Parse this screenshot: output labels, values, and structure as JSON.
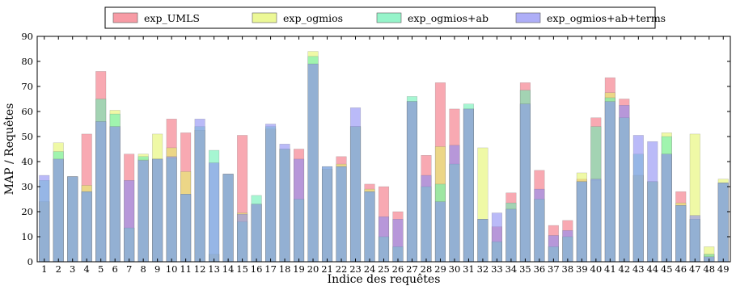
{
  "chart_data": {
    "type": "bar",
    "xlabel": "Indice des requêtes",
    "ylabel": "MAP / Requêtes",
    "ylim": [
      0,
      90
    ],
    "yticks": [
      0,
      10,
      20,
      30,
      40,
      50,
      60,
      70,
      80,
      90
    ],
    "categories": [
      "1",
      "2",
      "3",
      "4",
      "5",
      "6",
      "7",
      "8",
      "9",
      "10",
      "11",
      "12",
      "13",
      "14",
      "15",
      "16",
      "17",
      "18",
      "19",
      "20",
      "21",
      "22",
      "23",
      "24",
      "25",
      "26",
      "27",
      "28",
      "29",
      "30",
      "31",
      "32",
      "33",
      "34",
      "35",
      "36",
      "37",
      "38",
      "39",
      "40",
      "41",
      "42",
      "43",
      "44",
      "45",
      "46",
      "47",
      "48",
      "49"
    ],
    "legend_position": "top",
    "overlay": true,
    "series": [
      {
        "name": "exp_UMLS",
        "color": "#f4707f",
        "values": [
          24,
          41,
          34,
          51,
          76,
          54,
          43,
          41,
          41,
          57,
          51.5,
          52.5,
          3,
          35,
          50.5,
          23,
          53,
          45,
          45,
          79,
          37,
          42,
          54,
          31,
          30,
          20,
          64,
          42.5,
          71.5,
          61,
          61,
          17,
          14,
          27.5,
          71.5,
          36.5,
          14.5,
          16.5,
          33,
          57.5,
          73.5,
          65,
          34.5,
          32,
          43,
          28,
          17,
          3,
          31.5
        ]
      },
      {
        "name": "exp_ogmios",
        "color": "#e4f56a",
        "values": [
          24,
          47.5,
          34,
          30.5,
          56,
          60.5,
          13.5,
          43,
          51,
          45.5,
          36,
          52.5,
          3,
          35,
          19.5,
          23,
          53,
          45,
          25,
          84,
          37,
          39,
          54,
          29,
          10,
          6,
          64,
          30,
          46,
          39,
          61,
          45.5,
          8,
          21,
          63,
          25,
          6,
          10,
          35.5,
          32.5,
          67.5,
          57.5,
          34.5,
          32,
          51.5,
          23.5,
          51,
          6,
          33
        ]
      },
      {
        "name": "exp_ogmios+ab",
        "color": "#6af0b4",
        "values": [
          32.5,
          44,
          34,
          28,
          65,
          59,
          13.5,
          42,
          41,
          41.5,
          27,
          54,
          44.5,
          35,
          16,
          26.5,
          54,
          45,
          25,
          82,
          38,
          38,
          54,
          28,
          10,
          6,
          66,
          30,
          31,
          39,
          63,
          17,
          8,
          23.5,
          68.5,
          25,
          6,
          10,
          32,
          54,
          65.5,
          57.5,
          43,
          32,
          50,
          22.5,
          17,
          3,
          31.5
        ]
      },
      {
        "name": "exp_ogmios+ab+terms",
        "color": "#8c8cf4",
        "values": [
          34.5,
          41,
          34,
          28,
          56,
          54,
          32.5,
          40.5,
          41,
          42,
          27,
          57,
          39.5,
          35,
          19,
          23,
          55,
          47,
          41,
          79,
          38,
          38,
          61.5,
          28,
          18,
          17,
          64,
          34.5,
          24,
          46.5,
          61,
          17,
          19.5,
          21,
          63,
          29,
          10.5,
          12.5,
          32,
          33,
          64,
          62.5,
          50.5,
          48,
          43,
          22.5,
          18.5,
          2,
          31.5
        ]
      }
    ]
  }
}
